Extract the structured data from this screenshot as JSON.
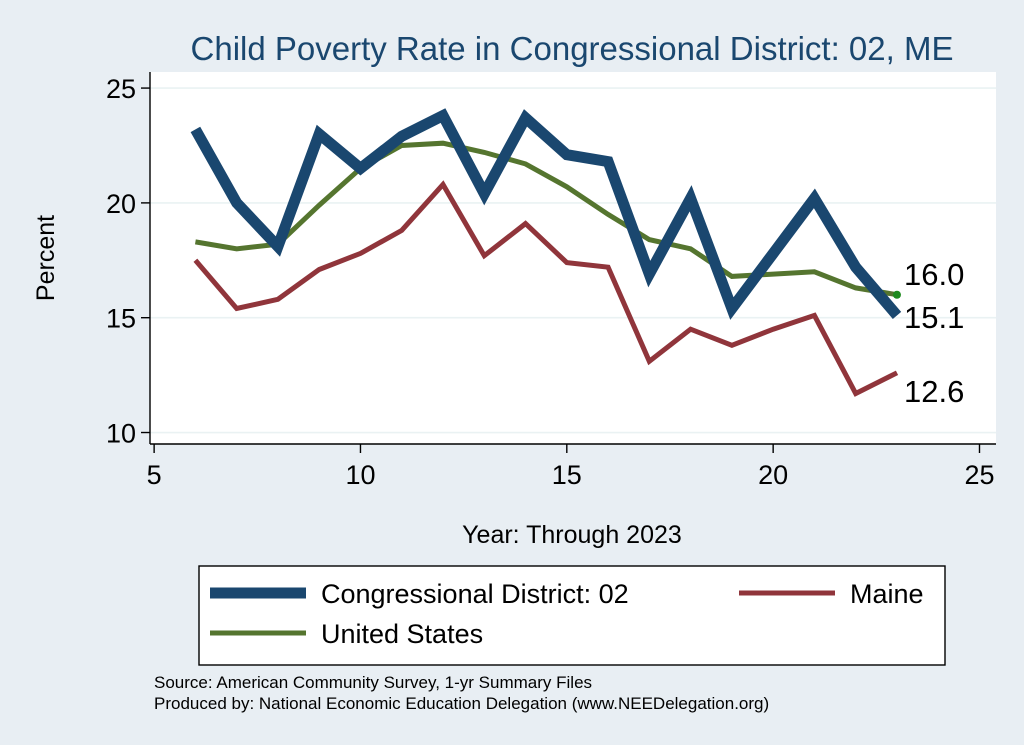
{
  "title": "Child Poverty Rate in Congressional District:  02, ME",
  "source_lines": [
    "Source: American Community Survey, 1-yr Summary Files",
    "Produced by: National Economic Education Delegation (www.NEEDelegation.org)"
  ],
  "chart_data": {
    "type": "line",
    "title": "Child Poverty Rate in Congressional District:  02, ME",
    "xlabel": "Year: Through 2023",
    "ylabel": "Percent",
    "xlim": [
      4.9,
      25.4
    ],
    "ylim": [
      9.5,
      25.7
    ],
    "xticks": [
      5,
      10,
      15,
      20,
      25
    ],
    "yticks": [
      10,
      15,
      20,
      25
    ],
    "grid": true,
    "legend_position": "bottom",
    "x": [
      6,
      7,
      8,
      9,
      10,
      11,
      12,
      13,
      14,
      15,
      16,
      17,
      18,
      19,
      20,
      21,
      22,
      23
    ],
    "series": [
      {
        "name": "Congressional District:  02",
        "color": "#1a476f",
        "values": [
          23.2,
          20.0,
          18.1,
          23.0,
          21.5,
          22.9,
          23.8,
          20.4,
          23.7,
          22.1,
          21.8,
          16.9,
          20.2,
          15.4,
          17.8,
          20.2,
          17.2,
          15.1
        ]
      },
      {
        "name": "Maine",
        "color": "#90353b",
        "values": [
          17.5,
          15.4,
          15.8,
          17.1,
          17.8,
          18.8,
          20.8,
          17.7,
          19.1,
          17.4,
          17.2,
          13.1,
          14.5,
          13.8,
          14.5,
          15.1,
          11.7,
          12.6
        ]
      },
      {
        "name": "United States",
        "color": "#55752f",
        "values": [
          18.3,
          18.0,
          18.2,
          19.9,
          21.5,
          22.5,
          22.6,
          22.2,
          21.7,
          20.7,
          19.5,
          18.4,
          18.0,
          16.8,
          16.9,
          17.0,
          16.3,
          16.0
        ]
      }
    ],
    "end_labels": [
      "15.1",
      "12.6",
      "16.0"
    ]
  }
}
